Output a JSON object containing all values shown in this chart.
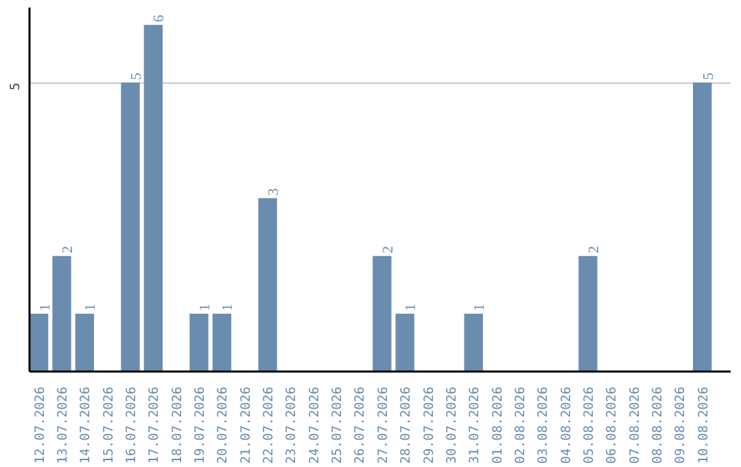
{
  "chart_data": {
    "type": "bar",
    "categories": [
      "12.07.2026",
      "13.07.2026",
      "14.07.2026",
      "15.07.2026",
      "16.07.2026",
      "17.07.2026",
      "18.07.2026",
      "19.07.2026",
      "20.07.2026",
      "21.07.2026",
      "22.07.2026",
      "23.07.2026",
      "24.07.2026",
      "25.07.2026",
      "26.07.2026",
      "27.07.2026",
      "28.07.2026",
      "29.07.2026",
      "30.07.2026",
      "31.07.2026",
      "01.08.2026",
      "02.08.2026",
      "03.08.2026",
      "04.08.2026",
      "05.08.2026",
      "06.08.2026",
      "07.08.2026",
      "08.08.2026",
      "09.08.2026",
      "10.08.2026"
    ],
    "values": [
      1,
      2,
      1,
      0,
      5,
      6,
      0,
      1,
      1,
      0,
      3,
      0,
      0,
      0,
      0,
      2,
      1,
      0,
      0,
      1,
      0,
      0,
      0,
      0,
      2,
      0,
      0,
      0,
      0,
      5
    ],
    "value_labels": [
      "1",
      "2",
      "1",
      null,
      "5",
      "6",
      null,
      "1",
      "1",
      null,
      "3",
      null,
      null,
      null,
      null,
      "2",
      "1",
      null,
      null,
      "1",
      null,
      null,
      null,
      null,
      "2",
      null,
      null,
      null,
      null,
      "5"
    ],
    "color": "#6a8caf",
    "ylim": [
      0,
      6.3
    ],
    "yticks": [
      5
    ],
    "grid": "y"
  }
}
